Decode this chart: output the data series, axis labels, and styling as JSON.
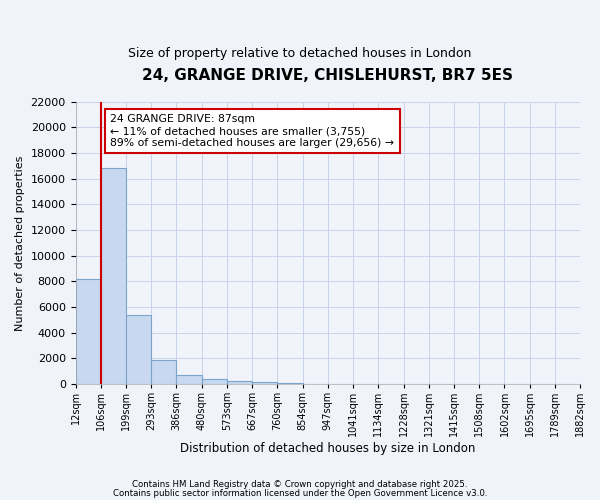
{
  "title": "24, GRANGE DRIVE, CHISLEHURST, BR7 5ES",
  "subtitle": "Size of property relative to detached houses in London",
  "xlabel": "Distribution of detached houses by size in London",
  "ylabel": "Number of detached properties",
  "bar_color": "#c8d8ee",
  "bar_edge_color": "#7aa4cc",
  "background_color": "#f0f4fa",
  "plot_bg_color": "#f0f4fa",
  "grid_color": "#c8d4e8",
  "annotation_box_color": "#ffffff",
  "annotation_box_edge": "#cc0000",
  "vline_color": "#cc0000",
  "property_size_bin": 106,
  "annotation_line1": "24 GRANGE DRIVE: 87sqm",
  "annotation_line2": "← 11% of detached houses are smaller (3,755)",
  "annotation_line3": "89% of semi-detached houses are larger (29,656) →",
  "bins": [
    12,
    106,
    199,
    293,
    386,
    480,
    573,
    667,
    760,
    854,
    947,
    1041,
    1134,
    1228,
    1321,
    1415,
    1508,
    1602,
    1695,
    1789,
    1882
  ],
  "bin_labels": [
    "12sqm",
    "106sqm",
    "199sqm",
    "293sqm",
    "386sqm",
    "480sqm",
    "573sqm",
    "667sqm",
    "760sqm",
    "854sqm",
    "947sqm",
    "1041sqm",
    "1134sqm",
    "1228sqm",
    "1321sqm",
    "1415sqm",
    "1508sqm",
    "1602sqm",
    "1695sqm",
    "1789sqm",
    "1882sqm"
  ],
  "values": [
    8200,
    16800,
    5400,
    1900,
    700,
    400,
    200,
    150,
    100,
    0,
    0,
    0,
    0,
    0,
    0,
    0,
    0,
    0,
    0,
    0
  ],
  "ylim": [
    0,
    22000
  ],
  "yticks": [
    0,
    2000,
    4000,
    6000,
    8000,
    10000,
    12000,
    14000,
    16000,
    18000,
    20000,
    22000
  ],
  "footnote1": "Contains HM Land Registry data © Crown copyright and database right 2025.",
  "footnote2": "Contains public sector information licensed under the Open Government Licence v3.0."
}
